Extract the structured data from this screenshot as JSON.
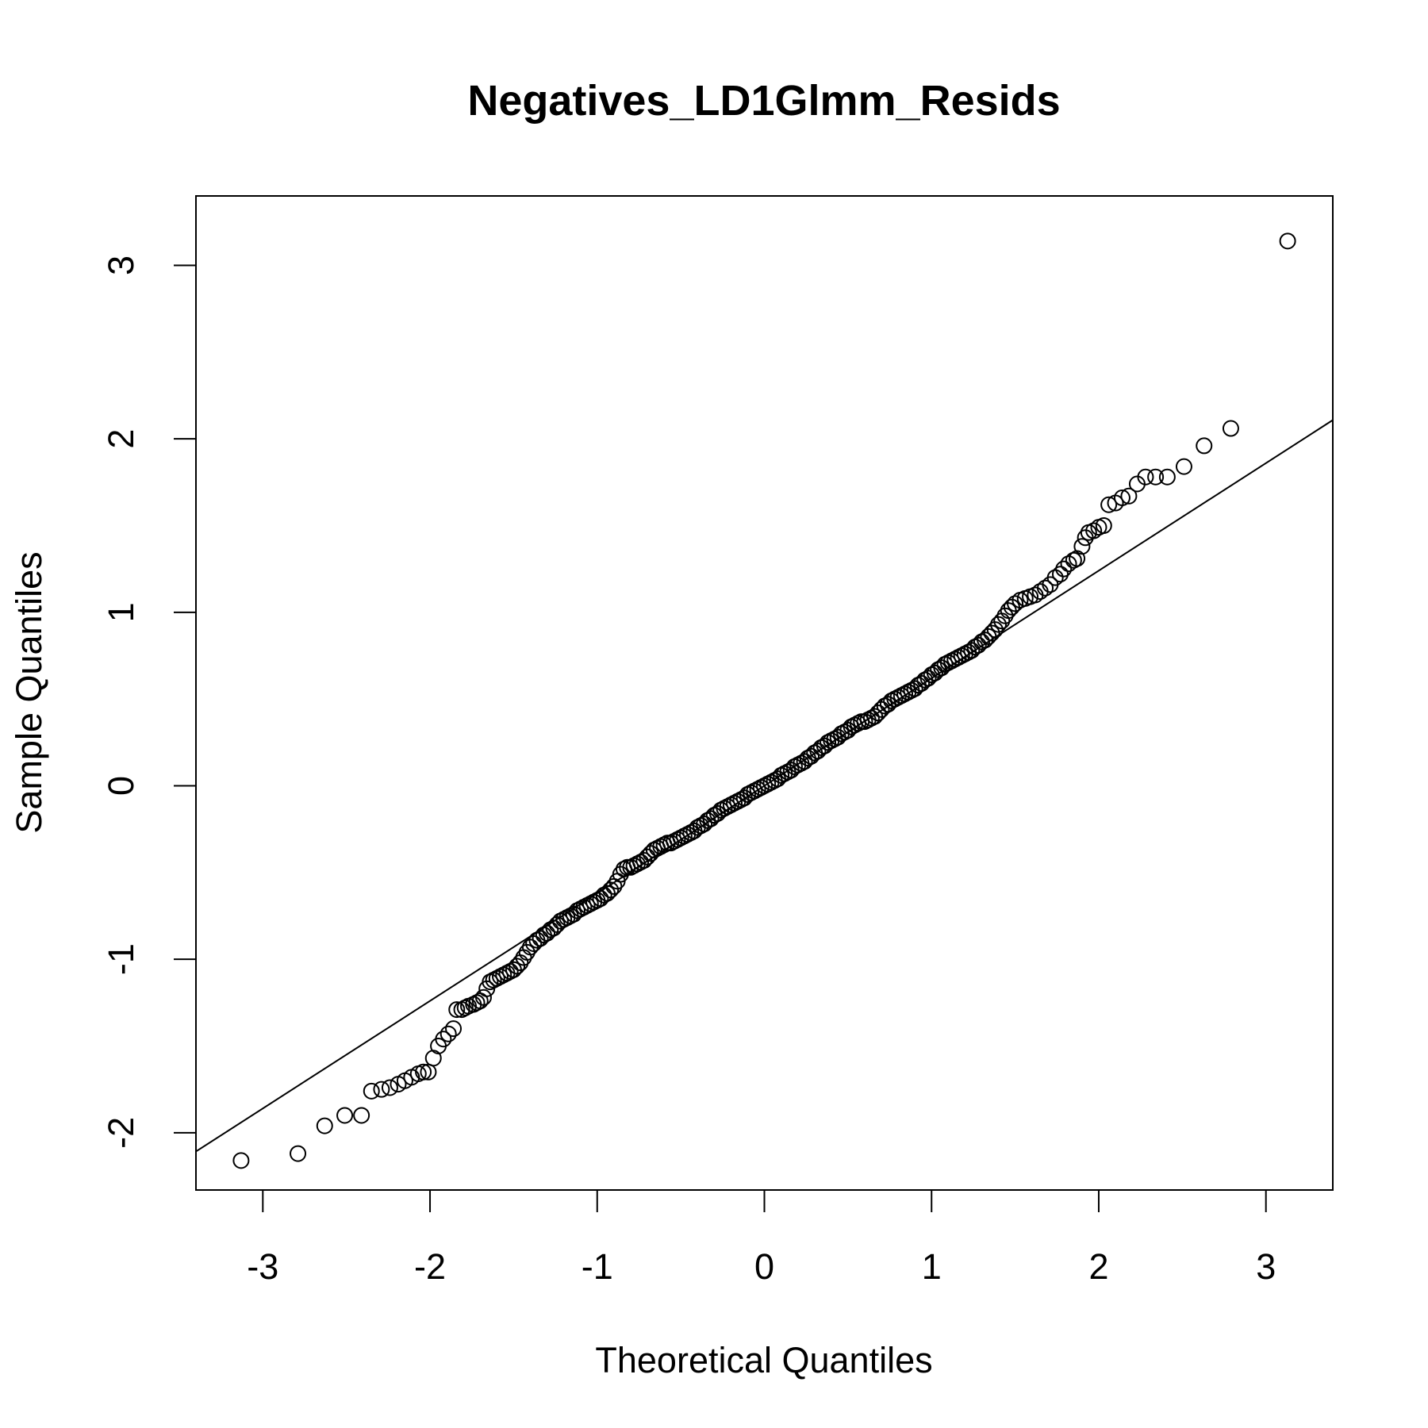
{
  "chart_data": {
    "type": "scatter",
    "title": "Negatives_LD1Glmm_Resids",
    "xlabel": "Theoretical Quantiles",
    "ylabel": "Sample Quantiles",
    "xlim": [
      -3.4,
      3.4
    ],
    "ylim": [
      -2.33,
      3.4
    ],
    "x_ticks": [
      -3,
      -2,
      -1,
      0,
      1,
      2,
      3
    ],
    "y_ticks": [
      -2,
      -1,
      0,
      1,
      2,
      3
    ],
    "reference_line": {
      "intercept": 0.0,
      "slope": 0.62
    },
    "series": [
      {
        "marker": "open-circle",
        "color": "#000000",
        "points": [
          [
            -3.13,
            -2.16
          ],
          [
            -2.79,
            -2.12
          ],
          [
            -2.63,
            -1.96
          ],
          [
            -2.51,
            -1.9
          ],
          [
            -2.41,
            -1.9
          ],
          [
            -2.35,
            -1.76
          ],
          [
            -2.29,
            -1.75
          ],
          [
            -2.24,
            -1.74
          ],
          [
            -2.19,
            -1.72
          ],
          [
            -2.15,
            -1.7
          ],
          [
            -2.11,
            -1.68
          ],
          [
            -2.07,
            -1.66
          ],
          [
            -2.04,
            -1.65
          ],
          [
            -2.01,
            -1.65
          ],
          [
            -1.98,
            -1.57
          ],
          [
            -1.95,
            -1.5
          ],
          [
            -1.92,
            -1.46
          ],
          [
            -1.89,
            -1.43
          ],
          [
            -1.86,
            -1.4
          ],
          [
            -1.84,
            -1.29
          ],
          [
            -1.81,
            -1.29
          ],
          [
            -1.79,
            -1.28
          ],
          [
            -1.77,
            -1.27
          ],
          [
            -1.74,
            -1.26
          ],
          [
            -1.72,
            -1.25
          ],
          [
            -1.7,
            -1.24
          ],
          [
            -1.68,
            -1.22
          ],
          [
            -1.66,
            -1.17
          ],
          [
            -1.64,
            -1.13
          ],
          [
            -1.62,
            -1.12
          ],
          [
            -1.6,
            -1.11
          ],
          [
            -1.58,
            -1.1
          ],
          [
            -1.56,
            -1.09
          ],
          [
            -1.54,
            -1.08
          ],
          [
            -1.52,
            -1.07
          ],
          [
            -1.5,
            -1.06
          ],
          [
            -1.48,
            -1.04
          ],
          [
            -1.46,
            -1.02
          ],
          [
            -1.44,
            -0.99
          ],
          [
            -1.42,
            -0.96
          ],
          [
            -1.4,
            -0.93
          ],
          [
            -1.38,
            -0.91
          ],
          [
            -1.36,
            -0.89
          ],
          [
            -1.34,
            -0.88
          ],
          [
            -1.32,
            -0.86
          ],
          [
            -1.3,
            -0.85
          ],
          [
            -1.28,
            -0.83
          ],
          [
            -1.26,
            -0.82
          ],
          [
            -1.24,
            -0.8
          ],
          [
            -1.22,
            -0.78
          ],
          [
            -1.2,
            -0.77
          ],
          [
            -1.18,
            -0.76
          ],
          [
            -1.16,
            -0.75
          ],
          [
            -1.14,
            -0.74
          ],
          [
            -1.12,
            -0.72
          ],
          [
            -1.1,
            -0.71
          ],
          [
            -1.08,
            -0.7
          ],
          [
            -1.06,
            -0.69
          ],
          [
            -1.04,
            -0.68
          ],
          [
            -1.02,
            -0.67
          ],
          [
            -1.0,
            -0.66
          ],
          [
            -0.98,
            -0.65
          ],
          [
            -0.96,
            -0.63
          ],
          [
            -0.94,
            -0.62
          ],
          [
            -0.92,
            -0.6
          ],
          [
            -0.9,
            -0.58
          ],
          [
            -0.88,
            -0.55
          ],
          [
            -0.86,
            -0.51
          ],
          [
            -0.84,
            -0.48
          ],
          [
            -0.82,
            -0.47
          ],
          [
            -0.8,
            -0.47
          ],
          [
            -0.78,
            -0.46
          ],
          [
            -0.76,
            -0.45
          ],
          [
            -0.74,
            -0.44
          ],
          [
            -0.72,
            -0.43
          ],
          [
            -0.7,
            -0.41
          ],
          [
            -0.68,
            -0.39
          ],
          [
            -0.66,
            -0.37
          ],
          [
            -0.64,
            -0.36
          ],
          [
            -0.62,
            -0.35
          ],
          [
            -0.6,
            -0.34
          ],
          [
            -0.58,
            -0.33
          ],
          [
            -0.56,
            -0.33
          ],
          [
            -0.54,
            -0.32
          ],
          [
            -0.52,
            -0.31
          ],
          [
            -0.5,
            -0.3
          ],
          [
            -0.48,
            -0.29
          ],
          [
            -0.46,
            -0.28
          ],
          [
            -0.44,
            -0.27
          ],
          [
            -0.42,
            -0.26
          ],
          [
            -0.4,
            -0.24
          ],
          [
            -0.38,
            -0.23
          ],
          [
            -0.36,
            -0.22
          ],
          [
            -0.34,
            -0.2
          ],
          [
            -0.32,
            -0.19
          ],
          [
            -0.3,
            -0.17
          ],
          [
            -0.28,
            -0.16
          ],
          [
            -0.26,
            -0.14
          ],
          [
            -0.24,
            -0.13
          ],
          [
            -0.22,
            -0.12
          ],
          [
            -0.2,
            -0.11
          ],
          [
            -0.18,
            -0.1
          ],
          [
            -0.16,
            -0.09
          ],
          [
            -0.14,
            -0.08
          ],
          [
            -0.12,
            -0.07
          ],
          [
            -0.1,
            -0.05
          ],
          [
            -0.08,
            -0.04
          ],
          [
            -0.06,
            -0.03
          ],
          [
            -0.04,
            -0.02
          ],
          [
            -0.02,
            -0.01
          ],
          [
            0.0,
            0.0
          ],
          [
            0.02,
            0.01
          ],
          [
            0.04,
            0.02
          ],
          [
            0.06,
            0.03
          ],
          [
            0.08,
            0.04
          ],
          [
            0.1,
            0.06
          ],
          [
            0.12,
            0.07
          ],
          [
            0.14,
            0.08
          ],
          [
            0.16,
            0.09
          ],
          [
            0.18,
            0.11
          ],
          [
            0.2,
            0.12
          ],
          [
            0.22,
            0.13
          ],
          [
            0.24,
            0.14
          ],
          [
            0.26,
            0.16
          ],
          [
            0.28,
            0.17
          ],
          [
            0.3,
            0.19
          ],
          [
            0.32,
            0.2
          ],
          [
            0.34,
            0.22
          ],
          [
            0.36,
            0.23
          ],
          [
            0.38,
            0.25
          ],
          [
            0.4,
            0.26
          ],
          [
            0.42,
            0.27
          ],
          [
            0.44,
            0.28
          ],
          [
            0.46,
            0.3
          ],
          [
            0.48,
            0.31
          ],
          [
            0.5,
            0.32
          ],
          [
            0.52,
            0.34
          ],
          [
            0.54,
            0.35
          ],
          [
            0.56,
            0.36
          ],
          [
            0.58,
            0.37
          ],
          [
            0.6,
            0.37
          ],
          [
            0.62,
            0.38
          ],
          [
            0.64,
            0.39
          ],
          [
            0.66,
            0.4
          ],
          [
            0.68,
            0.42
          ],
          [
            0.7,
            0.44
          ],
          [
            0.72,
            0.46
          ],
          [
            0.74,
            0.47
          ],
          [
            0.76,
            0.49
          ],
          [
            0.78,
            0.5
          ],
          [
            0.8,
            0.51
          ],
          [
            0.82,
            0.52
          ],
          [
            0.84,
            0.53
          ],
          [
            0.86,
            0.54
          ],
          [
            0.88,
            0.55
          ],
          [
            0.9,
            0.56
          ],
          [
            0.92,
            0.58
          ],
          [
            0.94,
            0.59
          ],
          [
            0.96,
            0.61
          ],
          [
            0.98,
            0.62
          ],
          [
            1.0,
            0.64
          ],
          [
            1.02,
            0.65
          ],
          [
            1.04,
            0.67
          ],
          [
            1.06,
            0.68
          ],
          [
            1.08,
            0.7
          ],
          [
            1.1,
            0.71
          ],
          [
            1.12,
            0.72
          ],
          [
            1.14,
            0.73
          ],
          [
            1.16,
            0.74
          ],
          [
            1.18,
            0.75
          ],
          [
            1.2,
            0.76
          ],
          [
            1.22,
            0.77
          ],
          [
            1.24,
            0.78
          ],
          [
            1.26,
            0.8
          ],
          [
            1.28,
            0.81
          ],
          [
            1.3,
            0.83
          ],
          [
            1.32,
            0.84
          ],
          [
            1.34,
            0.86
          ],
          [
            1.36,
            0.88
          ],
          [
            1.38,
            0.9
          ],
          [
            1.4,
            0.93
          ],
          [
            1.42,
            0.95
          ],
          [
            1.44,
            0.98
          ],
          [
            1.46,
            1.01
          ],
          [
            1.48,
            1.03
          ],
          [
            1.5,
            1.05
          ],
          [
            1.53,
            1.07
          ],
          [
            1.56,
            1.08
          ],
          [
            1.59,
            1.09
          ],
          [
            1.62,
            1.1
          ],
          [
            1.65,
            1.12
          ],
          [
            1.68,
            1.14
          ],
          [
            1.71,
            1.16
          ],
          [
            1.74,
            1.2
          ],
          [
            1.77,
            1.22
          ],
          [
            1.79,
            1.25
          ],
          [
            1.82,
            1.28
          ],
          [
            1.85,
            1.3
          ],
          [
            1.87,
            1.31
          ],
          [
            1.9,
            1.38
          ],
          [
            1.92,
            1.43
          ],
          [
            1.94,
            1.46
          ],
          [
            1.97,
            1.47
          ],
          [
            2.0,
            1.49
          ],
          [
            2.03,
            1.5
          ],
          [
            2.06,
            1.62
          ],
          [
            2.1,
            1.63
          ],
          [
            2.14,
            1.66
          ],
          [
            2.18,
            1.67
          ],
          [
            2.23,
            1.74
          ],
          [
            2.28,
            1.78
          ],
          [
            2.34,
            1.78
          ],
          [
            2.41,
            1.78
          ],
          [
            2.51,
            1.84
          ],
          [
            2.63,
            1.96
          ],
          [
            2.79,
            2.06
          ],
          [
            3.13,
            3.14
          ]
        ]
      }
    ]
  }
}
